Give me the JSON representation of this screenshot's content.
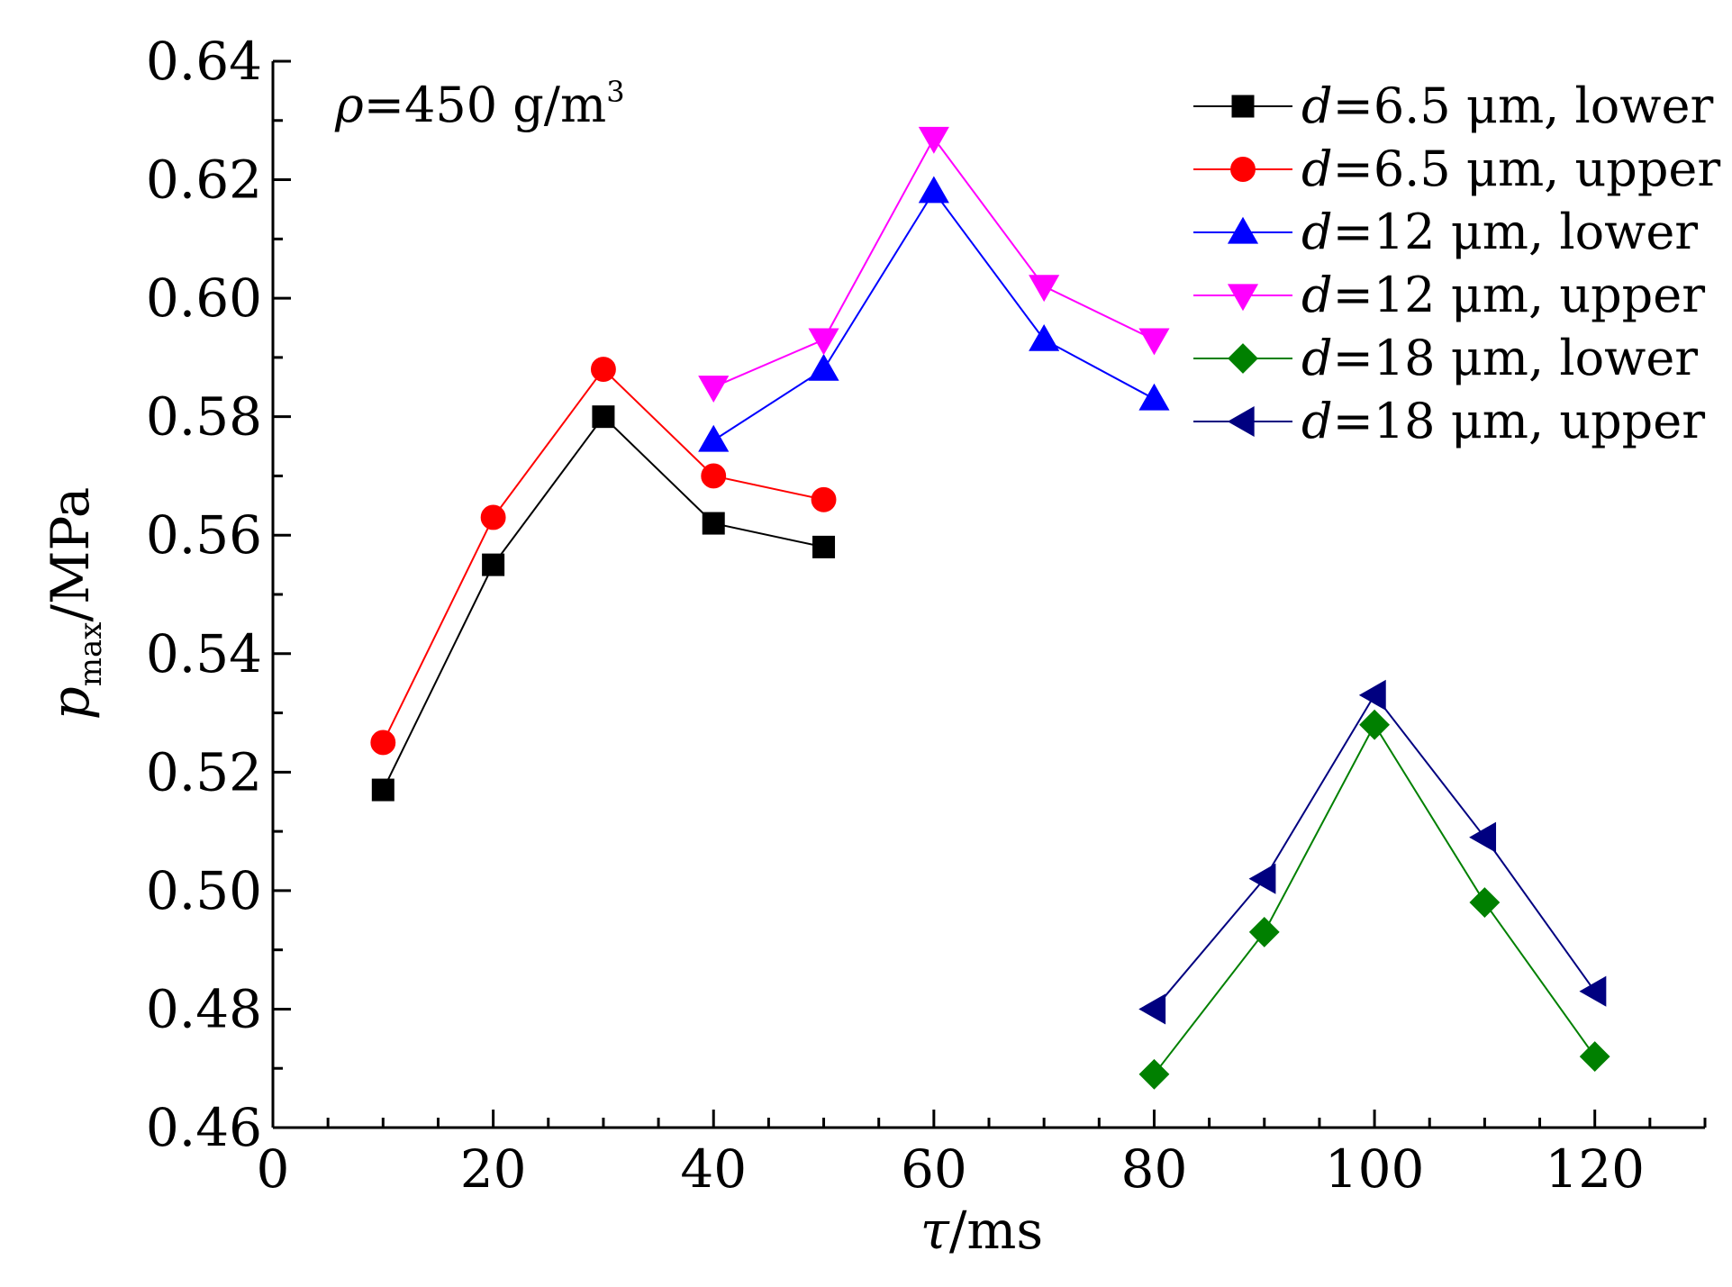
{
  "chart_data": {
    "type": "line",
    "title": "",
    "xlabel": {
      "symbol": "τ",
      "unit": "/ms"
    },
    "ylabel": {
      "symbol": "p",
      "subscript": "max",
      "unit": "/MPa"
    },
    "xlim": [
      0,
      130
    ],
    "ylim": [
      0.46,
      0.64
    ],
    "x_ticks": [
      0,
      20,
      40,
      60,
      80,
      100,
      120
    ],
    "x_tick_labels": [
      "0",
      "20",
      "40",
      "60",
      "80",
      "100",
      "120"
    ],
    "y_ticks": [
      0.46,
      0.48,
      0.5,
      0.52,
      0.54,
      0.56,
      0.58,
      0.6,
      0.62,
      0.64
    ],
    "y_tick_labels": [
      "0.46",
      "0.48",
      "0.50",
      "0.52",
      "0.54",
      "0.56",
      "0.58",
      "0.60",
      "0.62",
      "0.64"
    ],
    "grid": false,
    "legend_position": "top-right",
    "annotation": {
      "symbol": "ρ",
      "value": "=450 g/m",
      "superscript": "3"
    },
    "series": [
      {
        "name_symbol": "d",
        "name_text": "=6.5 μm, lower",
        "color": "#000000",
        "marker": "square",
        "x": [
          10,
          20,
          30,
          40,
          50
        ],
        "y": [
          0.517,
          0.555,
          0.58,
          0.562,
          0.558
        ]
      },
      {
        "name_symbol": "d",
        "name_text": "=6.5 μm, upper",
        "color": "#ff0000",
        "marker": "circle",
        "x": [
          10,
          20,
          30,
          40,
          50
        ],
        "y": [
          0.525,
          0.563,
          0.588,
          0.57,
          0.566
        ]
      },
      {
        "name_symbol": "d",
        "name_text": "=12 μm, lower",
        "color": "#0000ff",
        "marker": "triangle-up",
        "x": [
          40,
          50,
          60,
          70,
          80
        ],
        "y": [
          0.576,
          0.588,
          0.618,
          0.593,
          0.583
        ]
      },
      {
        "name_symbol": "d",
        "name_text": "=12 μm, upper",
        "color": "#ff00ff",
        "marker": "triangle-down",
        "x": [
          40,
          50,
          60,
          70,
          80
        ],
        "y": [
          0.585,
          0.593,
          0.627,
          0.602,
          0.593
        ]
      },
      {
        "name_symbol": "d",
        "name_text": "=18 μm, lower",
        "color": "#008000",
        "marker": "diamond",
        "x": [
          80,
          90,
          100,
          110,
          120
        ],
        "y": [
          0.469,
          0.493,
          0.528,
          0.498,
          0.472
        ]
      },
      {
        "name_symbol": "d",
        "name_text": "=18 μm, upper",
        "color": "#000080",
        "marker": "triangle-left",
        "x": [
          80,
          90,
          100,
          110,
          120
        ],
        "y": [
          0.48,
          0.502,
          0.533,
          0.509,
          0.483
        ]
      }
    ]
  }
}
